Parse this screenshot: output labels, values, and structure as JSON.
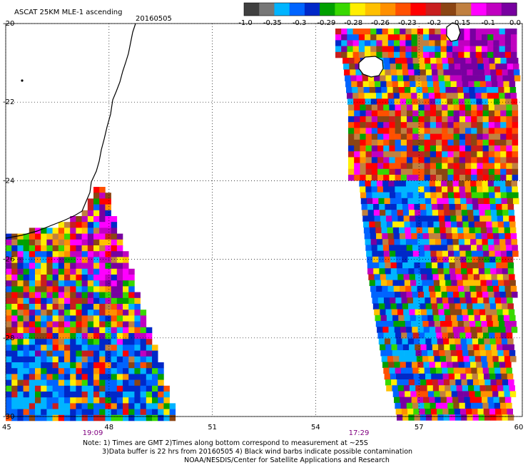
{
  "header": {
    "title": "ASCAT 25KM MLE-1 ascending",
    "date": "20160505"
  },
  "colorbar": {
    "colors": [
      "#404040",
      "#777777",
      "#00b4ff",
      "#0064ff",
      "#0028c8",
      "#00a000",
      "#38d800",
      "#ffee00",
      "#ffc000",
      "#ff9000",
      "#ff5000",
      "#ff0000",
      "#c81e1e",
      "#8b4513",
      "#c08040",
      "#ff00ff",
      "#c000c0",
      "#7800a0"
    ],
    "labels": [
      "-1.0",
      "-0.35",
      "-0.3",
      "-0.29",
      "-0.28",
      "-0.26",
      "-0.23",
      "-0.2",
      "-0.15",
      "-0.1",
      "0.0"
    ]
  },
  "axes": {
    "lon_ticks": [
      "45",
      "48",
      "51",
      "54",
      "57",
      "60"
    ],
    "lat_ticks": [
      "-20",
      "-22",
      "-24",
      "-26",
      "-28",
      "-30"
    ]
  },
  "pass_times": [
    {
      "label": "19:09",
      "color": "#800080"
    },
    {
      "label": "17:29",
      "color": "#800080"
    }
  ],
  "notes": [
    "Note: 1) Times are GMT 2)Times along bottom correspond to measurement at ~25S",
    "3)Data buffer is 22 hrs from 20160505 4) Black wind barbs indicate possible contamination",
    "NOAA/NESDIS/Center for Satellite Applications and Research"
  ],
  "chart_data": {
    "type": "heatmap",
    "variable": "ASCAT 25KM MLE-1 ascending",
    "date": "20160505",
    "lon_range": [
      45,
      60
    ],
    "lat_range": [
      -30,
      -20
    ],
    "grid_lines": true,
    "swaths": [
      {
        "name": "west swath",
        "time": "19:09",
        "lon_range": [
          45,
          49.8
        ],
        "lat_range": [
          -30,
          -24.3
        ]
      },
      {
        "name": "east swath",
        "time": "17:29",
        "lon_range": [
          54.5,
          59.6
        ],
        "lat_range": [
          -30,
          -20.2
        ]
      }
    ]
  }
}
